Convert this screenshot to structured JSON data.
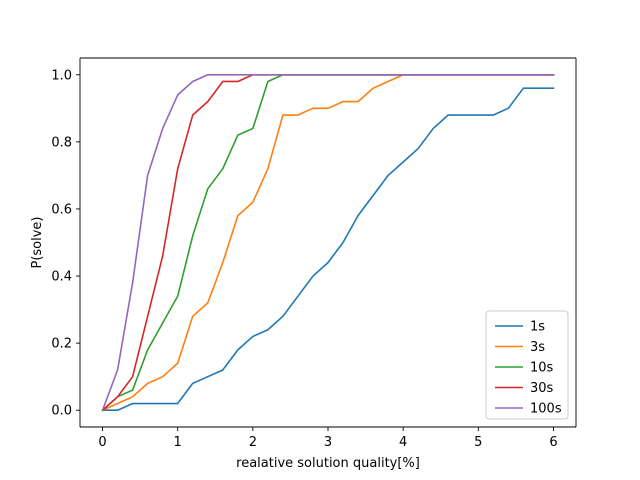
{
  "chart_data": {
    "type": "line",
    "title": "",
    "xlabel": "realative solution quality[%]",
    "ylabel": "P(solve)",
    "xlim": [
      -0.3,
      6.3
    ],
    "ylim": [
      -0.05,
      1.05
    ],
    "xticks": [
      0,
      1,
      2,
      3,
      4,
      5,
      6
    ],
    "yticks": [
      0.0,
      0.2,
      0.4,
      0.6,
      0.8,
      1.0
    ],
    "xtick_labels": [
      "0",
      "1",
      "2",
      "3",
      "4",
      "5",
      "6"
    ],
    "ytick_labels": [
      "0.0",
      "0.2",
      "0.4",
      "0.6",
      "0.8",
      "1.0"
    ],
    "grid": false,
    "legend_position": "lower-right",
    "x": [
      0,
      0.2,
      0.4,
      0.6,
      0.8,
      1.0,
      1.2,
      1.4,
      1.6,
      1.8,
      2.0,
      2.2,
      2.4,
      2.6,
      2.8,
      3.0,
      3.2,
      3.4,
      3.6,
      3.8,
      4.0,
      4.2,
      4.4,
      4.6,
      4.8,
      5.0,
      5.2,
      5.4,
      5.6,
      5.8,
      6.0
    ],
    "series": [
      {
        "name": "1s",
        "color": "#1f77b4",
        "values": [
          0,
          0,
          0.02,
          0.02,
          0.02,
          0.02,
          0.08,
          0.1,
          0.12,
          0.18,
          0.22,
          0.24,
          0.28,
          0.34,
          0.4,
          0.44,
          0.5,
          0.58,
          0.64,
          0.7,
          0.74,
          0.78,
          0.84,
          0.88,
          0.88,
          0.88,
          0.88,
          0.9,
          0.96,
          0.96,
          0.96
        ]
      },
      {
        "name": "3s",
        "color": "#ff7f0e",
        "values": [
          0,
          0.02,
          0.04,
          0.08,
          0.1,
          0.14,
          0.28,
          0.32,
          0.44,
          0.58,
          0.62,
          0.72,
          0.88,
          0.88,
          0.9,
          0.9,
          0.92,
          0.92,
          0.96,
          0.98,
          1.0,
          1.0,
          1.0,
          1.0,
          1.0,
          1.0,
          1.0,
          1.0,
          1.0,
          1.0,
          1.0
        ]
      },
      {
        "name": "10s",
        "color": "#2ca02c",
        "values": [
          0,
          0.04,
          0.06,
          0.18,
          0.26,
          0.34,
          0.52,
          0.66,
          0.72,
          0.82,
          0.84,
          0.98,
          1.0,
          1.0,
          1.0,
          1.0,
          1.0,
          1.0,
          1.0,
          1.0,
          1.0,
          1.0,
          1.0,
          1.0,
          1.0,
          1.0,
          1.0,
          1.0,
          1.0,
          1.0,
          1.0
        ]
      },
      {
        "name": "30s",
        "color": "#d62728",
        "values": [
          0,
          0.04,
          0.1,
          0.28,
          0.46,
          0.72,
          0.88,
          0.92,
          0.98,
          0.98,
          1.0,
          1.0,
          1.0,
          1.0,
          1.0,
          1.0,
          1.0,
          1.0,
          1.0,
          1.0,
          1.0,
          1.0,
          1.0,
          1.0,
          1.0,
          1.0,
          1.0,
          1.0,
          1.0,
          1.0,
          1.0
        ]
      },
      {
        "name": "100s",
        "color": "#9467bd",
        "values": [
          0,
          0.12,
          0.38,
          0.7,
          0.84,
          0.94,
          0.98,
          1.0,
          1.0,
          1.0,
          1.0,
          1.0,
          1.0,
          1.0,
          1.0,
          1.0,
          1.0,
          1.0,
          1.0,
          1.0,
          1.0,
          1.0,
          1.0,
          1.0,
          1.0,
          1.0,
          1.0,
          1.0,
          1.0,
          1.0,
          1.0
        ]
      }
    ]
  }
}
